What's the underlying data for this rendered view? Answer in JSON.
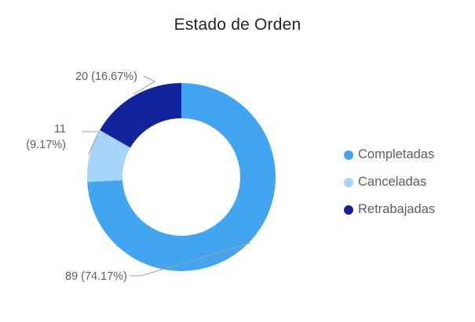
{
  "chart_data": {
    "type": "pie",
    "variant": "donut",
    "title": "Estado de Orden",
    "legend_position": "right",
    "categories": [
      "Completadas",
      "Canceladas",
      "Retrabajadas"
    ],
    "values": [
      89,
      11,
      20
    ],
    "percentages": [
      74.17,
      9.17,
      16.67
    ],
    "colors": [
      "#41a5f0",
      "#a6d4fb",
      "#12239e"
    ],
    "data_labels": [
      "89 (74.17%)",
      "11 (9.17%)",
      "20 (16.67%)"
    ]
  }
}
